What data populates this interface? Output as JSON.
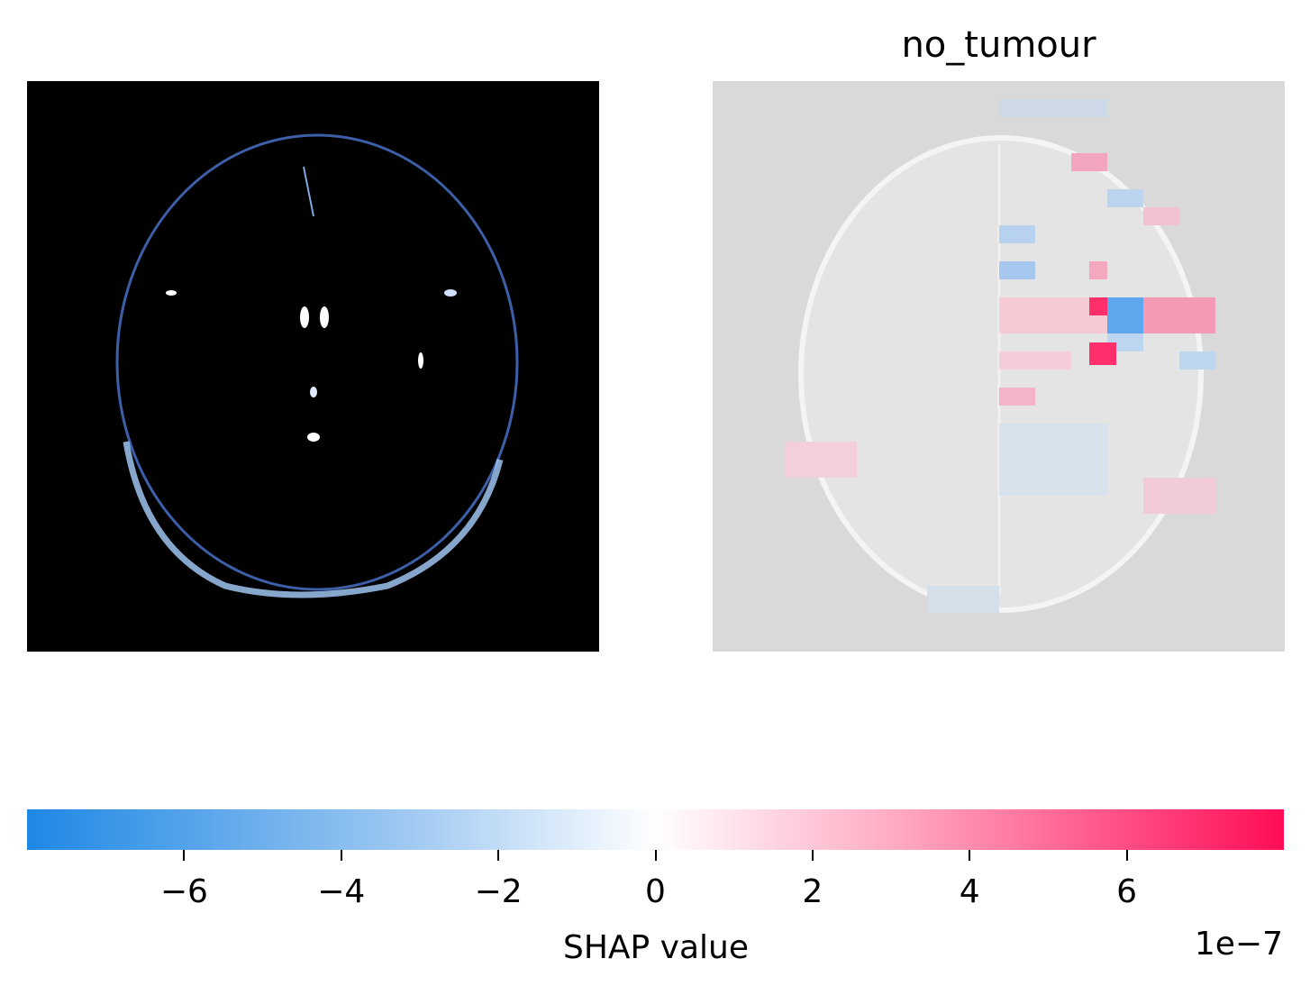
{
  "chart_data": [
    {
      "type": "heatmap",
      "title": "",
      "description_of_content": "",
      "xlabel": "",
      "ylabel": ""
    },
    {
      "type": "heatmap",
      "title": "no_tumour",
      "xlabel": "",
      "ylabel": "",
      "grid": false
    }
  ],
  "colorbar": {
    "label": "SHAP value",
    "offset_text": "1e−7",
    "range": [
      -8,
      8
    ],
    "ticks": [
      -6,
      -4,
      -2,
      0,
      2,
      4,
      6
    ],
    "tick_labels": [
      "−6",
      "−4",
      "−2",
      "0",
      "2",
      "4",
      "6"
    ],
    "colors": {
      "negative": "#1e88e5",
      "zero": "#ffffff",
      "positive": "#ff0d57"
    }
  },
  "colors": {
    "left_background": "#000000",
    "right_background": "#d9d9d9"
  }
}
